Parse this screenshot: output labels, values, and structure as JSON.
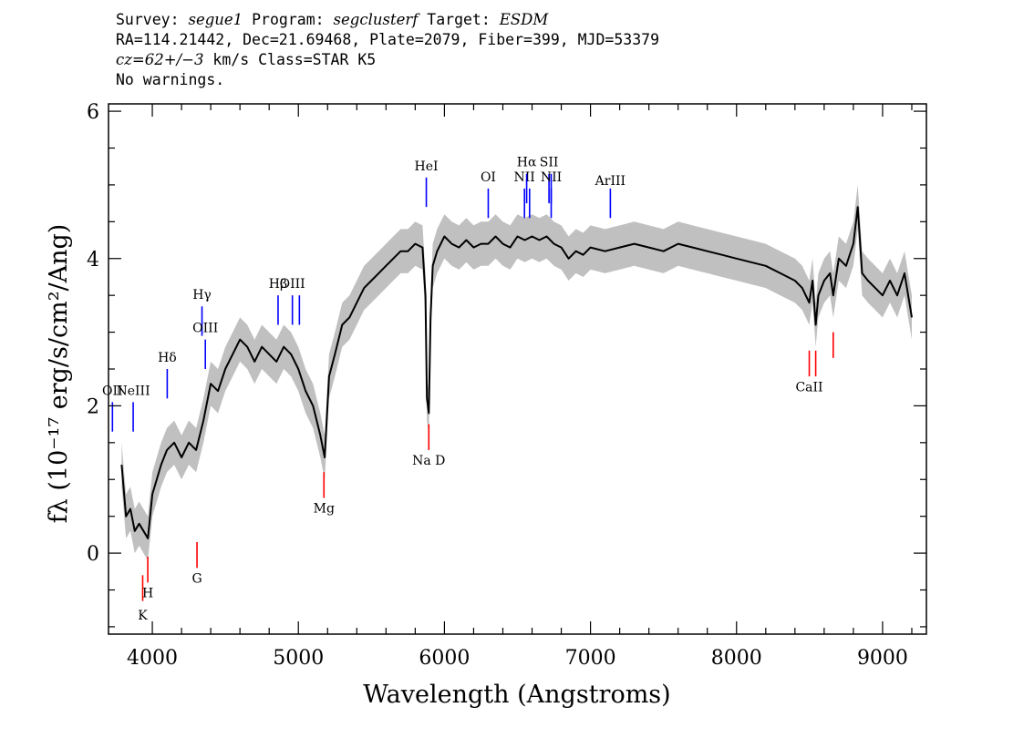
{
  "header": {
    "survey_label": "Survey:",
    "survey": "segue1",
    "program_label": "Program:",
    "program": "segclusterf",
    "target_label": "Target:",
    "target": "ESDM",
    "line2": "RA=114.21442, Dec=21.69468, Plate=2079, Fiber=399, MJD=53379",
    "cz": "cz=62+/−3",
    "cz_rest": " km/s Class=STAR K5",
    "line4": "No warnings."
  },
  "chart_data": {
    "type": "line",
    "xlabel": "Wavelength (Angstroms)",
    "ylabel": "fλ (10⁻¹⁷ erg/s/cm²/Ang)",
    "xlim": [
      3700,
      9300
    ],
    "ylim": [
      -1.1,
      6.1
    ],
    "x_ticks": [
      4000,
      5000,
      6000,
      7000,
      8000,
      9000
    ],
    "y_ticks": [
      0,
      2,
      4,
      6
    ],
    "colors": {
      "flux": "#000000",
      "error": "#c0c0c0",
      "emission": "#0000ff",
      "absorption": "#ff0000"
    },
    "series": [
      {
        "role": "flux",
        "x": [
          3790,
          3820,
          3850,
          3880,
          3910,
          3940,
          3970,
          4000,
          4030,
          4060,
          4100,
          4150,
          4200,
          4250,
          4300,
          4350,
          4400,
          4450,
          4500,
          4550,
          4600,
          4650,
          4700,
          4750,
          4800,
          4850,
          4900,
          4950,
          5000,
          5050,
          5100,
          5150,
          5180,
          5210,
          5250,
          5300,
          5350,
          5400,
          5450,
          5500,
          5550,
          5600,
          5650,
          5700,
          5750,
          5800,
          5850,
          5870,
          5880,
          5893,
          5905,
          5920,
          5950,
          6000,
          6050,
          6100,
          6150,
          6200,
          6250,
          6300,
          6350,
          6400,
          6450,
          6500,
          6550,
          6600,
          6650,
          6700,
          6750,
          6800,
          6850,
          6900,
          6950,
          7000,
          7100,
          7200,
          7300,
          7400,
          7500,
          7600,
          7700,
          7800,
          7900,
          8000,
          8100,
          8200,
          8300,
          8400,
          8450,
          8498,
          8520,
          8542,
          8560,
          8580,
          8600,
          8640,
          8662,
          8700,
          8750,
          8800,
          8830,
          8860,
          8900,
          8950,
          9000,
          9050,
          9100,
          9150,
          9200
        ],
        "y": [
          1.2,
          0.5,
          0.6,
          0.3,
          0.4,
          0.3,
          0.2,
          0.8,
          1.0,
          1.2,
          1.4,
          1.5,
          1.3,
          1.5,
          1.4,
          1.8,
          2.3,
          2.2,
          2.5,
          2.7,
          2.9,
          2.8,
          2.6,
          2.8,
          2.7,
          2.6,
          2.8,
          2.7,
          2.5,
          2.2,
          2.0,
          1.6,
          1.3,
          2.4,
          2.7,
          3.1,
          3.2,
          3.4,
          3.6,
          3.7,
          3.8,
          3.9,
          4.0,
          4.1,
          4.1,
          4.2,
          4.15,
          3.5,
          2.1,
          1.9,
          3.2,
          3.9,
          4.1,
          4.3,
          4.2,
          4.15,
          4.25,
          4.15,
          4.2,
          4.2,
          4.3,
          4.2,
          4.15,
          4.3,
          4.25,
          4.3,
          4.25,
          4.3,
          4.2,
          4.15,
          4.0,
          4.1,
          4.05,
          4.15,
          4.1,
          4.15,
          4.2,
          4.15,
          4.1,
          4.2,
          4.15,
          4.1,
          4.05,
          4.0,
          3.95,
          3.9,
          3.8,
          3.7,
          3.6,
          3.4,
          3.7,
          3.1,
          3.5,
          3.6,
          3.7,
          3.8,
          3.5,
          4.0,
          3.9,
          4.2,
          4.7,
          3.8,
          3.7,
          3.6,
          3.5,
          3.7,
          3.5,
          3.8,
          3.2
        ]
      }
    ],
    "error_band_width": 0.3,
    "emission_lines": [
      {
        "label": "OII",
        "x": 3727,
        "y0": 1.65,
        "y1": 2.05,
        "ly": 2.15
      },
      {
        "label": "NeIII",
        "x": 3869,
        "y0": 1.65,
        "y1": 2.05,
        "ly": 2.15
      },
      {
        "label": "Hδ",
        "x": 4102,
        "y0": 2.1,
        "y1": 2.5,
        "ly": 2.6
      },
      {
        "label": "Hγ",
        "x": 4340,
        "y0": 2.95,
        "y1": 3.35,
        "ly": 3.45
      },
      {
        "label": "OIII",
        "x": 4363,
        "y0": 2.5,
        "y1": 2.9,
        "ly": 3.0
      },
      {
        "label": "Hβ",
        "x": 4861,
        "y0": 3.1,
        "y1": 3.5,
        "ly": 3.6
      },
      {
        "label": "OIII",
        "x": 4959,
        "y0": 3.1,
        "y1": 3.5,
        "ly": 3.6
      },
      {
        "label": "",
        "x": 5007,
        "y0": 3.1,
        "y1": 3.5,
        "ly": 3.6
      },
      {
        "label": "HeI",
        "x": 5876,
        "y0": 4.7,
        "y1": 5.1,
        "ly": 5.2
      },
      {
        "label": "OI",
        "x": 6300,
        "y0": 4.55,
        "y1": 4.95,
        "ly": 5.05
      },
      {
        "label": "NII",
        "x": 6548,
        "y0": 4.55,
        "y1": 4.95,
        "ly": 5.05
      },
      {
        "label": "",
        "x": 6583,
        "y0": 4.55,
        "y1": 4.95,
        "ly": 5.05
      },
      {
        "label": "Hα",
        "x": 6563,
        "y0": 4.75,
        "y1": 5.15,
        "ly": 5.25
      },
      {
        "label": "SII",
        "x": 6716,
        "y0": 4.75,
        "y1": 5.15,
        "ly": 5.25
      },
      {
        "label": "",
        "x": 6731,
        "y0": 4.75,
        "y1": 5.15,
        "ly": 5.25
      },
      {
        "label": "NII",
        "x": 6731,
        "y0": 4.55,
        "y1": 4.95,
        "ly": 5.05
      },
      {
        "label": "ArIII",
        "x": 7136,
        "y0": 4.55,
        "y1": 4.95,
        "ly": 5.0
      }
    ],
    "absorption_lines": [
      {
        "label": "K",
        "x": 3934,
        "y0": -0.65,
        "y1": -0.3,
        "ly": -0.9
      },
      {
        "label": "H",
        "x": 3969,
        "y0": -0.4,
        "y1": -0.05,
        "ly": -0.6
      },
      {
        "label": "G",
        "x": 4306,
        "y0": -0.2,
        "y1": 0.15,
        "ly": -0.4
      },
      {
        "label": "Mg",
        "x": 5175,
        "y0": 0.75,
        "y1": 1.1,
        "ly": 0.55
      },
      {
        "label": "Na D",
        "x": 5893,
        "y0": 1.4,
        "y1": 1.75,
        "ly": 1.2
      },
      {
        "label": "CaII",
        "x": 8498,
        "y0": 2.4,
        "y1": 2.75,
        "ly": 2.2
      },
      {
        "label": "",
        "x": 8542,
        "y0": 2.4,
        "y1": 2.75,
        "ly": 2.2
      },
      {
        "label": "",
        "x": 8662,
        "y0": 2.65,
        "y1": 3.0,
        "ly": 2.45
      }
    ]
  }
}
